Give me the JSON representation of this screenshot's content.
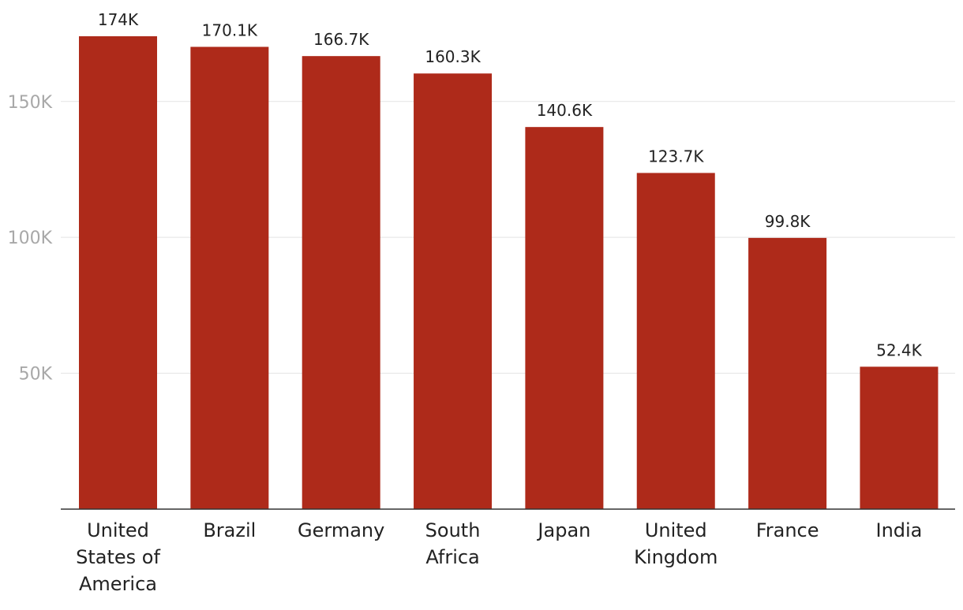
{
  "chart_data": {
    "type": "bar",
    "categories": [
      "United States of America",
      "Brazil",
      "Germany",
      "South Africa",
      "Japan",
      "United Kingdom",
      "France",
      "India"
    ],
    "category_lines": [
      [
        "United",
        "States of",
        "America"
      ],
      [
        "Brazil"
      ],
      [
        "Germany"
      ],
      [
        "South",
        "Africa"
      ],
      [
        "Japan"
      ],
      [
        "United",
        "Kingdom"
      ],
      [
        "France"
      ],
      [
        "India"
      ]
    ],
    "values": [
      174000,
      170100,
      166700,
      160300,
      140600,
      123700,
      99800,
      52400
    ],
    "data_labels": [
      "174K",
      "170.1K",
      "166.7K",
      "160.3K",
      "140.6K",
      "123.7K",
      "99.8K",
      "52.4K"
    ],
    "yticks": [
      50000,
      100000,
      150000
    ],
    "ytick_labels": [
      "50K",
      "100K",
      "150K"
    ],
    "ylim": [
      0,
      174000
    ],
    "grid": true,
    "bar_color": "#ae2a1a",
    "title": "",
    "xlabel": "",
    "ylabel": ""
  }
}
